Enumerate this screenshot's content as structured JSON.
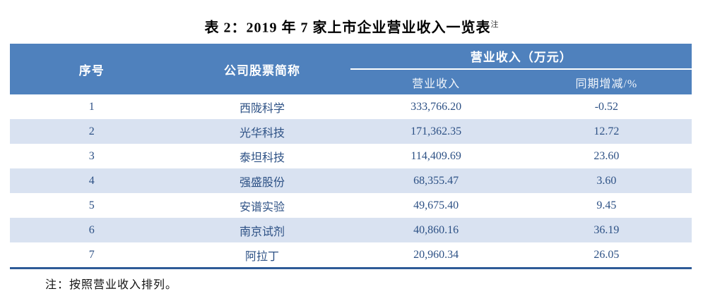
{
  "title": {
    "text": "表 2：2019 年 7 家上市企业营业收入一览表",
    "superscript": "注"
  },
  "table": {
    "header": {
      "seq": "序号",
      "company": "公司股票简称",
      "revenue_group": "营业收入（万元）",
      "revenue_sub": "营业收入",
      "change_sub": "同期增减/%"
    },
    "rows": [
      {
        "seq": "1",
        "company": "西陇科学",
        "revenue": "333,766.20",
        "change": "-0.52"
      },
      {
        "seq": "2",
        "company": "光华科技",
        "revenue": "171,362.35",
        "change": "12.72"
      },
      {
        "seq": "3",
        "company": "泰坦科技",
        "revenue": "114,409.69",
        "change": "23.60"
      },
      {
        "seq": "4",
        "company": "强盛股份",
        "revenue": "68,355.47",
        "change": "3.60"
      },
      {
        "seq": "5",
        "company": "安谱实验",
        "revenue": "49,675.40",
        "change": "9.45"
      },
      {
        "seq": "6",
        "company": "南京试剂",
        "revenue": "40,860.16",
        "change": "36.19"
      },
      {
        "seq": "7",
        "company": "阿拉丁",
        "revenue": "20,960.34",
        "change": "26.05"
      }
    ]
  },
  "note": "注：按照营业收入排列。",
  "colors": {
    "header_bg": "#4F81BD",
    "row_alt_bg": "#D9E2F1",
    "body_text": "#2D5185",
    "bottom_border": "#2E5B97",
    "header_divider": "#FFFFFF"
  }
}
